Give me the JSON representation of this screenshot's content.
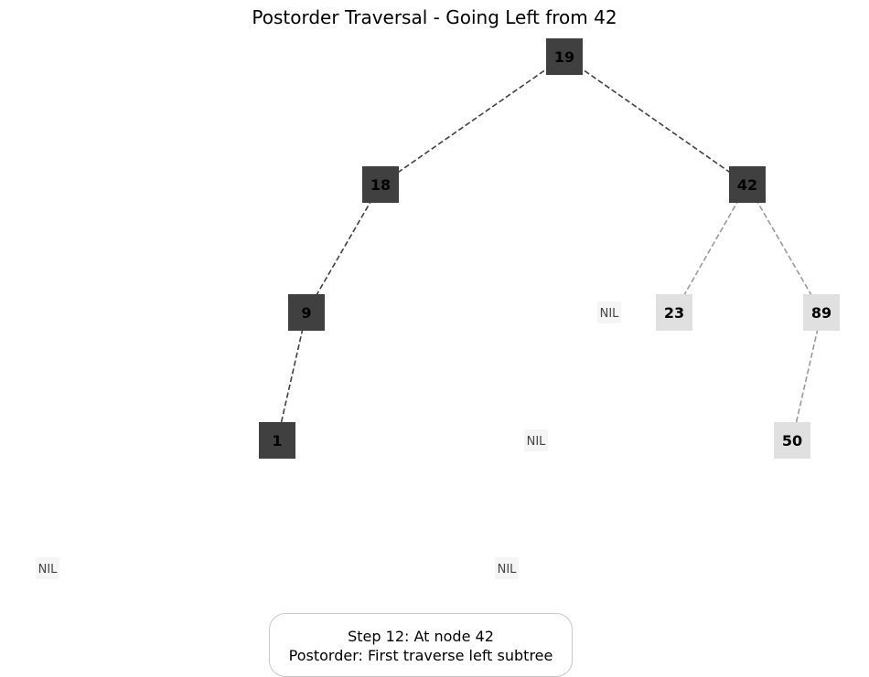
{
  "title": "Postorder Traversal - Going Left from 42",
  "colors": {
    "visited_fill": "#404040",
    "unvisited_fill": "#e0e0e0",
    "nil_fill": "#f5f5f5",
    "visited_edge": "#404040",
    "unvisited_edge": "#999999",
    "node_text": "#000000"
  },
  "nodes": [
    {
      "id": "n19",
      "label": "19",
      "state": "visited"
    },
    {
      "id": "n18",
      "label": "18",
      "state": "visited"
    },
    {
      "id": "n42",
      "label": "42",
      "state": "visited"
    },
    {
      "id": "n9",
      "label": "9",
      "state": "visited"
    },
    {
      "id": "n1",
      "label": "1",
      "state": "visited"
    },
    {
      "id": "n23",
      "label": "23",
      "state": "unvisited"
    },
    {
      "id": "n89",
      "label": "89",
      "state": "unvisited"
    },
    {
      "id": "n50",
      "label": "50",
      "state": "unvisited"
    }
  ],
  "nil_nodes": [
    {
      "id": "nil1",
      "label": "NIL"
    },
    {
      "id": "nil2",
      "label": "NIL"
    },
    {
      "id": "nil3",
      "label": "NIL"
    },
    {
      "id": "nil4",
      "label": "NIL"
    }
  ],
  "edges": [
    {
      "from": "n19",
      "to": "n18",
      "state": "visited"
    },
    {
      "from": "n19",
      "to": "n42",
      "state": "visited"
    },
    {
      "from": "n18",
      "to": "n9",
      "state": "visited"
    },
    {
      "from": "n9",
      "to": "n1",
      "state": "visited"
    },
    {
      "from": "n42",
      "to": "n23",
      "state": "unvisited"
    },
    {
      "from": "n42",
      "to": "n89",
      "state": "unvisited"
    },
    {
      "from": "n89",
      "to": "n50",
      "state": "unvisited"
    }
  ],
  "status": {
    "line1": "Step 12: At node 42",
    "line2": "Postorder: First traverse left subtree"
  }
}
